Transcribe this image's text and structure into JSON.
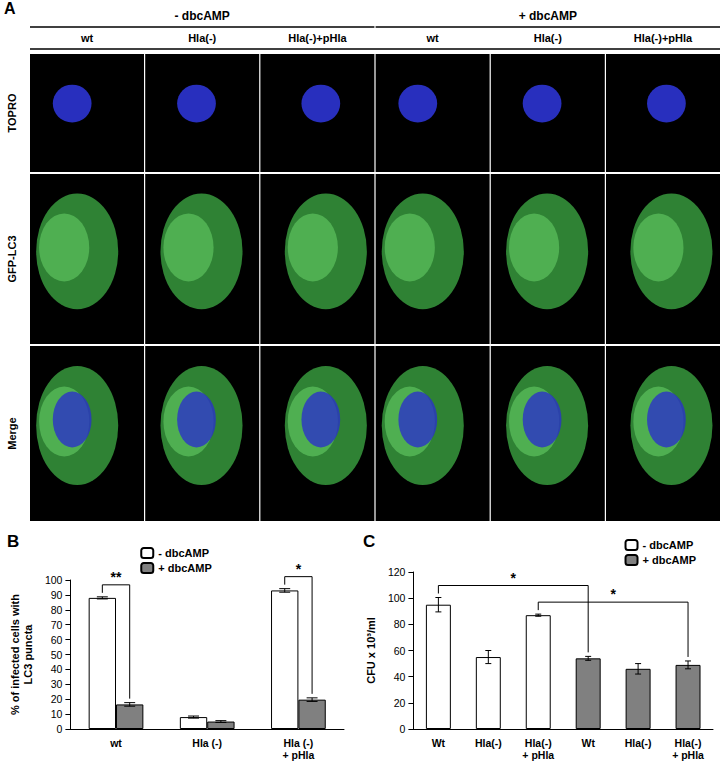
{
  "panel_a": {
    "title": "A",
    "groups": [
      "- dbcAMP",
      "+ dbcAMP"
    ],
    "columns": [
      [
        "wt",
        "Hla(-)",
        "Hla(-)+pHla"
      ],
      [
        "wt",
        "Hla(-)",
        "Hla(-)+pHla"
      ]
    ],
    "rows": [
      "TOPRO",
      "GFP-LC3",
      "Merge"
    ]
  },
  "chart_data": [
    {
      "type": "bar",
      "title": "B",
      "categories": [
        "wt",
        "Hla (-)",
        "Hla (-)\n+ pHla"
      ],
      "series": [
        {
          "name": "- dbcAMP",
          "color": "#ffffff",
          "values": [
            88,
            8,
            93
          ],
          "errors": [
            0.7,
            0.7,
            1.2
          ]
        },
        {
          "name": "+ dbcAMP",
          "color": "#808080",
          "values": [
            16.5,
            5,
            19.7
          ],
          "errors": [
            1.2,
            0.6,
            1.2
          ]
        }
      ],
      "y_label": "% of infected cells with\nLC3 puncta",
      "ylim": [
        0,
        100
      ],
      "yticks": [
        0,
        10,
        20,
        30,
        40,
        50,
        60,
        70,
        80,
        90,
        100
      ],
      "grid": false,
      "legend": "top",
      "annotations": [
        {
          "text": "**",
          "between": [
            [
              0,
              0
            ],
            [
              0,
              1
            ]
          ]
        },
        {
          "text": "*",
          "between": [
            [
              2,
              0
            ],
            [
              2,
              1
            ]
          ]
        }
      ]
    },
    {
      "type": "bar",
      "title": "C",
      "categories": [
        "Wt",
        "Hla(-)",
        "Hla(-)\n+ pHla",
        "Wt",
        "Hla(-)",
        "Hla(-)\n+ pHla"
      ],
      "series": [
        {
          "name": "- dbcAMP",
          "color": "#ffffff",
          "values": [
            95,
            55,
            87,
            null,
            null,
            null
          ],
          "errors": [
            5.5,
            5,
            0.8,
            null,
            null,
            null
          ]
        },
        {
          "name": "+ dbcAMP",
          "color": "#808080",
          "values": [
            null,
            null,
            null,
            54,
            46,
            49
          ],
          "errors": [
            null,
            null,
            null,
            1.5,
            4,
            3
          ]
        }
      ],
      "y_label": "CFU x 10³/ml",
      "ylim": [
        0,
        120
      ],
      "yticks": [
        0,
        20,
        40,
        60,
        80,
        100,
        120
      ],
      "grid": false,
      "legend": "top-right",
      "annotations": [
        {
          "text": "*",
          "between": [
            [
              0,
              0
            ],
            [
              3,
              1
            ]
          ]
        },
        {
          "text": "*",
          "between": [
            [
              2,
              0
            ],
            [
              5,
              1
            ]
          ]
        }
      ]
    }
  ]
}
